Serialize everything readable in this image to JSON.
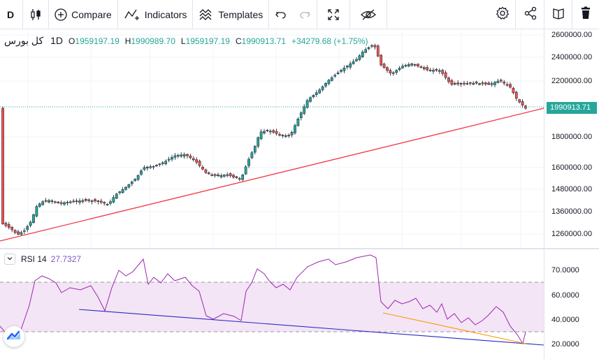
{
  "toolbar": {
    "symbol": "D",
    "compare_label": "Compare",
    "indicators_label": "Indicators",
    "templates_label": "Templates",
    "icons": [
      "candles-icon",
      "plus-circle-icon",
      "indicators-icon",
      "templates-icon",
      "undo-icon",
      "redo-icon",
      "fullscreen-icon",
      "eye-hide-icon",
      "gear-icon",
      "share-icon",
      "snapshot-icon",
      "trash-icon"
    ]
  },
  "legend": {
    "symbol": "کل بورس",
    "timeframe": "1D",
    "open_key": "O",
    "open": "1959197.19",
    "high_key": "H",
    "high": "1990989.70",
    "low_key": "L",
    "low": "1959197.19",
    "close_key": "C",
    "close": "1990913.71",
    "change": "+34279.68 (+1.75%)"
  },
  "price_axis": {
    "labels": [
      "2600000.00",
      "2400000.00",
      "2200000.00",
      "1800000.00",
      "1600000.00",
      "1480000.00",
      "1360000.00",
      "1260000.00"
    ],
    "current_price": "1990913.71"
  },
  "rsi": {
    "name": "RSI 14",
    "value": "27.7327",
    "axis_labels": [
      "70.0000",
      "60.0000",
      "40.0000",
      "20.0000"
    ]
  },
  "colors": {
    "up": "#26a69a",
    "down": "#ef5350",
    "rsi_line": "#9c27b0",
    "rsi_band": "#f3e5f5",
    "trendline": "#f23645",
    "rsi_trend_blue": "#2929c7",
    "rsi_trend_orange": "#ff9800"
  }
}
